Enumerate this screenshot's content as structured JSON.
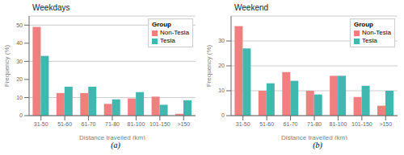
{
  "chart_data": [
    {
      "type": "bar",
      "title": "Weekdays",
      "xlabel": "Distance travelled (km)",
      "ylabel": "Frequency (%)",
      "categories": [
        "31-50",
        "51-60",
        "61-70",
        "71-80",
        "81-100",
        "101-150",
        ">150"
      ],
      "series": [
        {
          "name": "Non-Tesla",
          "color": "#F08080",
          "values": [
            49,
            12.5,
            12.5,
            6.5,
            9.5,
            10.5,
            1
          ]
        },
        {
          "name": "Tesla",
          "color": "#40B8B0",
          "values": [
            33,
            16,
            16,
            9,
            13,
            6,
            8.5
          ]
        }
      ],
      "ylim": [
        0,
        55
      ],
      "yticks": [
        0,
        10,
        20,
        30,
        40,
        50
      ],
      "grid": true,
      "legend": "upper right",
      "legend_title": "Group",
      "annotations": [
        "(a)"
      ]
    },
    {
      "type": "bar",
      "title": "Weekend",
      "xlabel": "Distance travelled (km)",
      "ylabel": "Frequency (%)",
      "categories": [
        "31-50",
        "51-60",
        "61-70",
        "71-80",
        "81-100",
        "101-150",
        ">150"
      ],
      "series": [
        {
          "name": "Non-Tesla",
          "color": "#F08080",
          "values": [
            36,
            10,
            17.5,
            10,
            16,
            7.5,
            4
          ]
        },
        {
          "name": "Tesla",
          "color": "#40B8B0",
          "values": [
            27,
            13,
            14,
            8.5,
            16,
            12,
            10
          ]
        }
      ],
      "ylim": [
        0,
        40
      ],
      "yticks": [
        0,
        10,
        20,
        30
      ],
      "grid": true,
      "legend": "upper right",
      "legend_title": "Group",
      "annotations": [
        "(b)"
      ]
    }
  ]
}
